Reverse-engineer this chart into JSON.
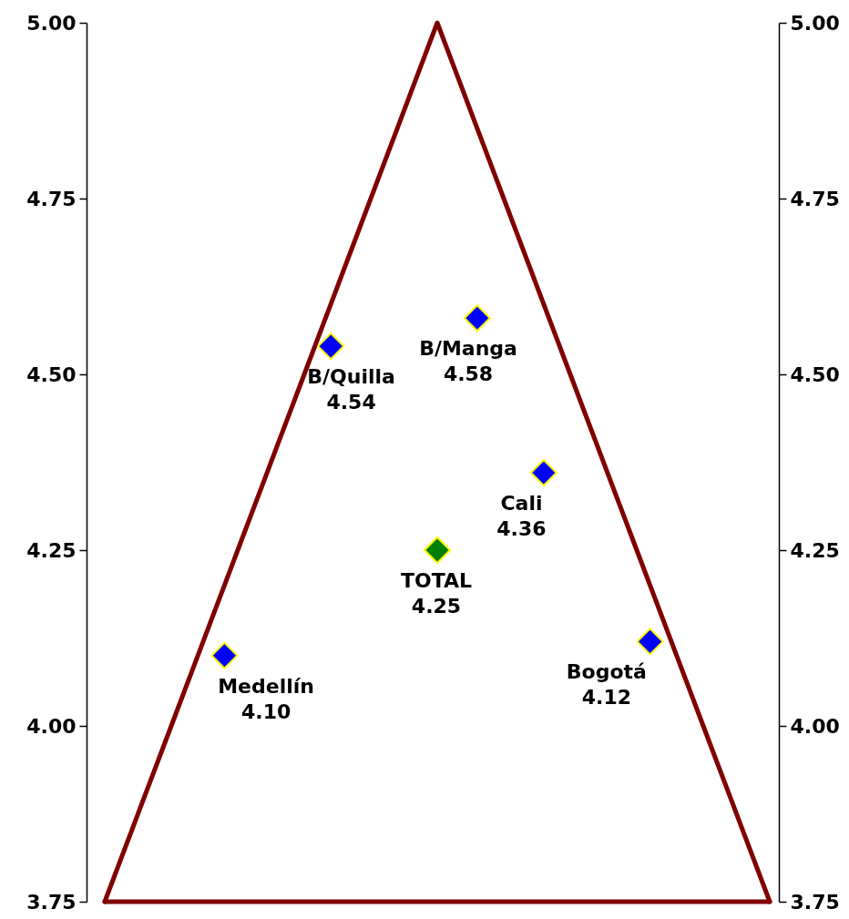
{
  "chart_data": {
    "type": "scatter",
    "categories": [
      null,
      null,
      null,
      null,
      null,
      null,
      null,
      null,
      null,
      null,
      null,
      null,
      null,
      null,
      null,
      null,
      null,
      null,
      null,
      null,
      null,
      null,
      null,
      null,
      null,
      null,
      null,
      null,
      null,
      null,
      null,
      null,
      null,
      null,
      null,
      null,
      null,
      null,
      null,
      null,
      null,
      null,
      null,
      null,
      null,
      null,
      null,
      null,
      null,
      null,
      null
    ],
    "ylim": [
      3.75,
      5
    ],
    "yticks": [
      3.75,
      {
        "value": 4,
        "label": "4.00"
      },
      4.25,
      {
        "value": 4.5,
        "label": "4.50"
      },
      4.75,
      {
        "value": 5,
        "label": "5.00"
      }
    ],
    "y2lim": [
      3.75,
      5
    ],
    "y2ticks": [
      3.75,
      {
        "value": 4,
        "label": "4.00"
      },
      4.25,
      {
        "value": 4.5,
        "label": "4.50"
      },
      4.75,
      {
        "value": 5,
        "label": "5.00"
      }
    ],
    "marker": "diamond",
    "series": [
      {
        "type": "line",
        "marker": "none",
        "color": "#800000",
        "values": [
          3.75,
          3.8,
          3.85,
          3.9,
          3.95,
          4,
          4.05,
          4.1,
          4.15,
          4.2,
          4.25,
          4.3,
          4.35,
          4.4,
          4.45,
          4.5,
          4.55,
          4.6,
          4.65,
          4.7,
          4.75,
          4.8,
          4.85,
          4.9,
          4.95,
          5,
          4.95,
          4.9,
          4.85,
          4.8,
          4.75,
          4.7,
          4.65,
          4.6,
          4.55,
          4.5,
          4.45,
          4.4,
          4.35,
          4.3,
          4.25,
          4.2,
          4.15,
          4.1,
          4.05,
          4,
          3.95,
          3.9,
          3.85,
          3.8,
          3.75
        ]
      },
      {
        "type": "line",
        "marker": "none",
        "color": "#800000",
        "values": [
          3.75,
          3.75,
          3.75,
          3.75,
          3.75,
          3.75,
          3.75,
          3.75,
          3.75,
          3.75,
          3.75,
          3.75,
          3.75,
          3.75,
          3.75,
          3.75,
          3.75,
          3.75,
          3.75,
          3.75,
          3.75,
          3.75,
          3.75,
          3.75,
          3.75,
          3.75,
          3.75,
          3.75,
          3.75,
          3.75,
          3.75,
          3.75,
          3.75,
          3.75,
          3.75,
          3.75,
          3.75,
          3.75,
          3.75,
          3.75,
          3.75,
          3.75,
          3.75,
          3.75,
          3.75,
          3.75,
          3.75,
          3.75,
          3.75,
          3.75,
          3.75
        ]
      },
      {
        "name": "Medellín",
        "color": "#0000ff",
        "values": [
          null,
          null,
          null,
          null,
          null,
          null,
          null,
          null,
          null,
          4.1,
          null,
          null,
          null,
          null,
          null,
          null,
          null,
          null,
          null,
          null,
          null,
          null,
          null,
          null,
          null,
          null,
          null,
          null,
          null,
          null,
          null,
          null,
          null,
          null,
          null,
          null,
          null,
          null,
          null,
          null,
          null,
          null,
          null,
          null,
          null,
          null,
          null,
          null,
          null,
          null,
          null
        ],
        "value_labels": [
          null,
          null,
          null,
          null,
          null,
          null,
          null,
          null,
          null,
          "4.10",
          null,
          null,
          null,
          null,
          null,
          null,
          null,
          null,
          null,
          null,
          null,
          null,
          null,
          null,
          null,
          null,
          null,
          null,
          null,
          null,
          null,
          null,
          null,
          null,
          null,
          null,
          null,
          null,
          null,
          null,
          null,
          null,
          null,
          null,
          null,
          null,
          null,
          null,
          null,
          null,
          null
        ]
      },
      {
        "name": "B/Quilla",
        "color": "#0000ff",
        "values": [
          null,
          null,
          null,
          null,
          null,
          null,
          null,
          null,
          null,
          null,
          null,
          null,
          null,
          null,
          null,
          null,
          null,
          4.54,
          null,
          null,
          null,
          null,
          null,
          null,
          null,
          null,
          null,
          null,
          null,
          null,
          null,
          null,
          null,
          null,
          null,
          null,
          null,
          null,
          null,
          null,
          null,
          null,
          null,
          null,
          null,
          null,
          null,
          null,
          null,
          null,
          null
        ],
        "value_labels": [
          null,
          null,
          null,
          null,
          null,
          null,
          null,
          null,
          null,
          null,
          null,
          null,
          null,
          null,
          null,
          null,
          null,
          "4.54",
          null,
          null,
          null,
          null,
          null,
          null,
          null,
          null,
          null,
          null,
          null,
          null,
          null,
          null,
          null,
          null,
          null,
          null,
          null,
          null,
          null,
          null,
          null,
          null,
          null,
          null,
          null,
          null,
          null,
          null,
          null,
          null,
          null
        ]
      },
      {
        "name": "TOTAL",
        "color": "#008000",
        "values": [
          null,
          null,
          null,
          null,
          null,
          null,
          null,
          null,
          null,
          null,
          null,
          null,
          null,
          null,
          null,
          null,
          null,
          null,
          null,
          null,
          null,
          null,
          null,
          null,
          null,
          4.25,
          null,
          null,
          null,
          null,
          null,
          null,
          null,
          null,
          null,
          null,
          null,
          null,
          null,
          null,
          null,
          null,
          null,
          null,
          null,
          null,
          null,
          null,
          null,
          null,
          null
        ],
        "value_labels": [
          null,
          null,
          null,
          null,
          null,
          null,
          null,
          null,
          null,
          null,
          null,
          null,
          null,
          null,
          null,
          null,
          null,
          null,
          null,
          null,
          null,
          null,
          null,
          null,
          null,
          "4.25",
          null,
          null,
          null,
          null,
          null,
          null,
          null,
          null,
          null,
          null,
          null,
          null,
          null,
          null,
          null,
          null,
          null,
          null,
          null,
          null,
          null,
          null,
          null,
          null,
          null
        ]
      },
      {
        "name": "B/Manga",
        "color": "#0000ff",
        "values": [
          null,
          null,
          null,
          null,
          null,
          null,
          null,
          null,
          null,
          null,
          null,
          null,
          null,
          null,
          null,
          null,
          null,
          null,
          null,
          null,
          null,
          null,
          null,
          null,
          null,
          null,
          null,
          null,
          4.58,
          null,
          null,
          null,
          null,
          null,
          null,
          null,
          null,
          null,
          null,
          null,
          null,
          null,
          null,
          null,
          null,
          null,
          null,
          null,
          null,
          null,
          null
        ],
        "value_labels": [
          null,
          null,
          null,
          null,
          null,
          null,
          null,
          null,
          null,
          null,
          null,
          null,
          null,
          null,
          null,
          null,
          null,
          null,
          null,
          null,
          null,
          null,
          null,
          null,
          null,
          null,
          null,
          null,
          "4.58",
          null,
          null,
          null,
          null,
          null,
          null,
          null,
          null,
          null,
          null,
          null,
          null,
          null,
          null,
          null,
          null,
          null,
          null,
          null,
          null,
          null,
          null
        ]
      },
      {
        "name": "Cali",
        "color": "#0000ff",
        "values": [
          null,
          null,
          null,
          null,
          null,
          null,
          null,
          null,
          null,
          null,
          null,
          null,
          null,
          null,
          null,
          null,
          null,
          null,
          null,
          null,
          null,
          null,
          null,
          null,
          null,
          null,
          null,
          null,
          null,
          null,
          null,
          null,
          null,
          4.36,
          null,
          null,
          null,
          null,
          null,
          null,
          null,
          null,
          null,
          null,
          null,
          null,
          null,
          null,
          null,
          null,
          null
        ],
        "value_labels": [
          null,
          null,
          null,
          null,
          null,
          null,
          null,
          null,
          null,
          null,
          null,
          null,
          null,
          null,
          null,
          null,
          null,
          null,
          null,
          null,
          null,
          null,
          null,
          null,
          null,
          null,
          null,
          null,
          null,
          null,
          null,
          null,
          null,
          "4.36",
          null,
          null,
          null,
          null,
          null,
          null,
          null,
          null,
          null,
          null,
          null,
          null,
          null,
          null,
          null,
          null,
          null
        ]
      },
      {
        "name": "Bogotá",
        "color": "#0000ff",
        "values": [
          null,
          null,
          null,
          null,
          null,
          null,
          null,
          null,
          null,
          null,
          null,
          null,
          null,
          null,
          null,
          null,
          null,
          null,
          null,
          null,
          null,
          null,
          null,
          null,
          null,
          null,
          null,
          null,
          null,
          null,
          null,
          null,
          null,
          null,
          null,
          null,
          null,
          null,
          null,
          null,
          null,
          4.12,
          null,
          null,
          null,
          null,
          null,
          null,
          null,
          null,
          null
        ],
        "value_labels": [
          null,
          null,
          null,
          null,
          null,
          null,
          null,
          null,
          null,
          null,
          null,
          null,
          null,
          null,
          null,
          null,
          null,
          null,
          null,
          null,
          null,
          null,
          null,
          null,
          null,
          null,
          null,
          null,
          null,
          null,
          null,
          null,
          null,
          null,
          null,
          null,
          null,
          null,
          null,
          null,
          null,
          "4.12",
          null,
          null,
          null,
          null,
          null,
          null,
          null,
          null,
          null
        ]
      }
    ]
  }
}
